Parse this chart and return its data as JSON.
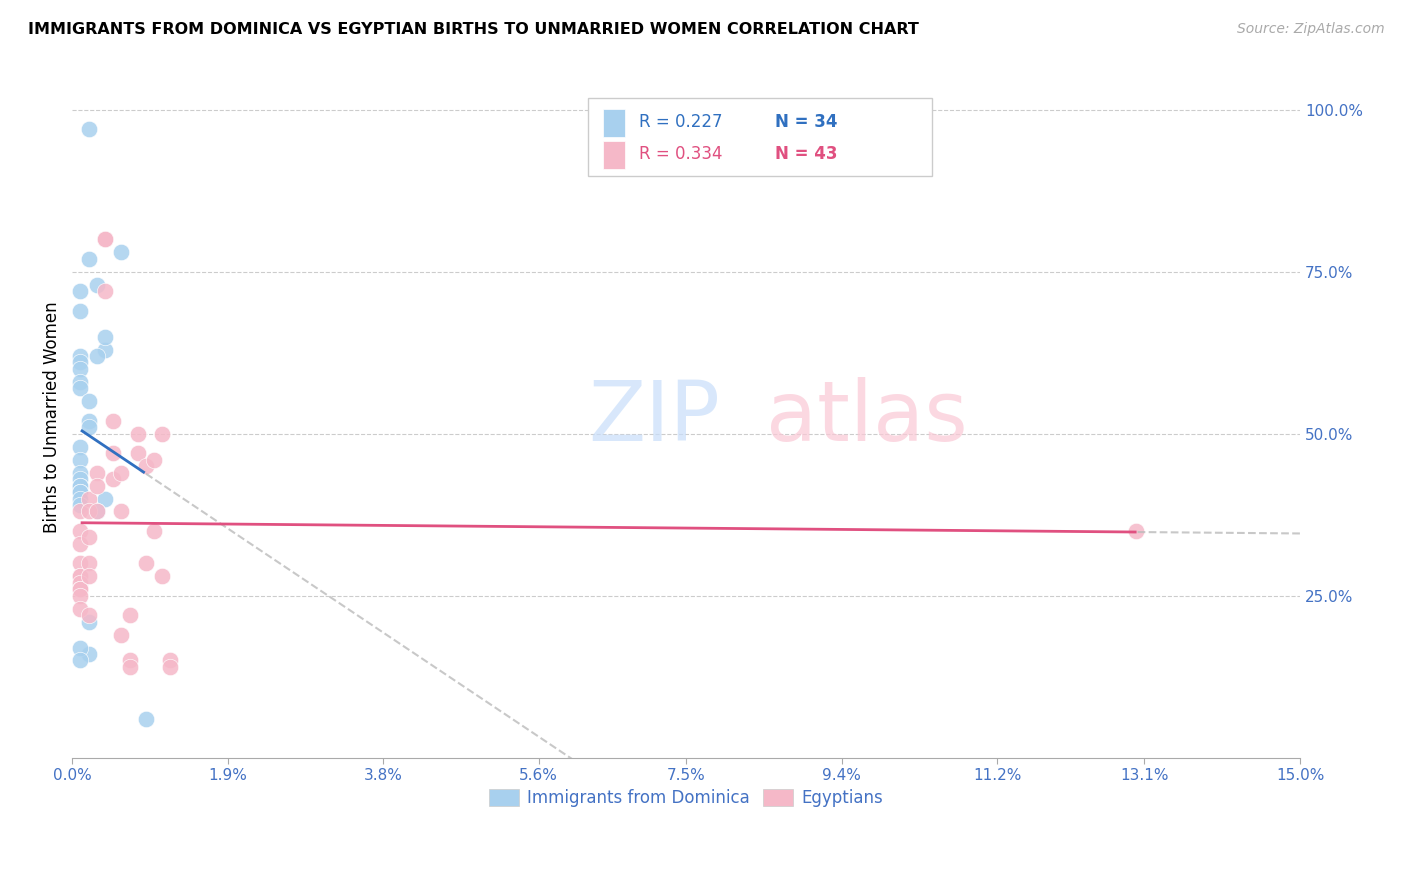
{
  "title": "IMMIGRANTS FROM DOMINICA VS EGYPTIAN BIRTHS TO UNMARRIED WOMEN CORRELATION CHART",
  "source": "Source: ZipAtlas.com",
  "ylabel": "Births to Unmarried Women",
  "right_yticks": [
    "100.0%",
    "75.0%",
    "50.0%",
    "25.0%"
  ],
  "right_ytick_vals": [
    1.0,
    0.75,
    0.5,
    0.25
  ],
  "legend1_r": "R = 0.227",
  "legend1_n": "N = 34",
  "legend2_r": "R = 0.334",
  "legend2_n": "N = 43",
  "blue_color": "#A8D0EE",
  "pink_color": "#F5B8C8",
  "blue_line_color": "#3070C0",
  "pink_line_color": "#E05080",
  "blue_scatter_x": [
    0.002,
    0.006,
    0.002,
    0.003,
    0.001,
    0.001,
    0.001,
    0.001,
    0.001,
    0.001,
    0.001,
    0.002,
    0.002,
    0.002,
    0.001,
    0.001,
    0.001,
    0.001,
    0.001,
    0.001,
    0.001,
    0.001,
    0.004,
    0.004,
    0.003,
    0.002,
    0.002,
    0.009,
    0.001,
    0.004,
    0.001,
    0.003,
    0.001,
    0.001
  ],
  "blue_scatter_y": [
    0.97,
    0.78,
    0.77,
    0.73,
    0.72,
    0.69,
    0.62,
    0.61,
    0.6,
    0.58,
    0.57,
    0.55,
    0.52,
    0.51,
    0.48,
    0.46,
    0.44,
    0.43,
    0.42,
    0.42,
    0.41,
    0.41,
    0.63,
    0.65,
    0.62,
    0.21,
    0.16,
    0.06,
    0.4,
    0.4,
    0.39,
    0.38,
    0.17,
    0.15
  ],
  "pink_scatter_x": [
    0.001,
    0.001,
    0.001,
    0.001,
    0.001,
    0.001,
    0.001,
    0.001,
    0.001,
    0.001,
    0.001,
    0.002,
    0.002,
    0.002,
    0.002,
    0.002,
    0.002,
    0.003,
    0.003,
    0.003,
    0.004,
    0.004,
    0.004,
    0.005,
    0.005,
    0.005,
    0.006,
    0.006,
    0.006,
    0.007,
    0.007,
    0.007,
    0.008,
    0.008,
    0.009,
    0.009,
    0.01,
    0.01,
    0.011,
    0.011,
    0.012,
    0.012,
    0.13
  ],
  "pink_scatter_y": [
    0.38,
    0.35,
    0.33,
    0.3,
    0.28,
    0.28,
    0.27,
    0.26,
    0.26,
    0.25,
    0.23,
    0.4,
    0.38,
    0.34,
    0.3,
    0.28,
    0.22,
    0.44,
    0.42,
    0.38,
    0.8,
    0.8,
    0.72,
    0.52,
    0.47,
    0.43,
    0.44,
    0.38,
    0.19,
    0.15,
    0.14,
    0.22,
    0.5,
    0.47,
    0.45,
    0.3,
    0.46,
    0.35,
    0.5,
    0.28,
    0.15,
    0.14,
    0.35
  ],
  "xlim": [
    0.0,
    0.15
  ],
  "ylim": [
    0.0,
    1.05
  ],
  "xtick_positions": [
    0.0,
    0.019,
    0.038,
    0.057,
    0.075,
    0.094,
    0.113,
    0.131,
    0.15
  ],
  "xtick_labels": [
    "0.0%",
    "1.9%",
    "3.8%",
    "5.6%",
    "7.5%",
    "9.4%",
    "11.2%",
    "13.1%",
    "15.0%"
  ]
}
